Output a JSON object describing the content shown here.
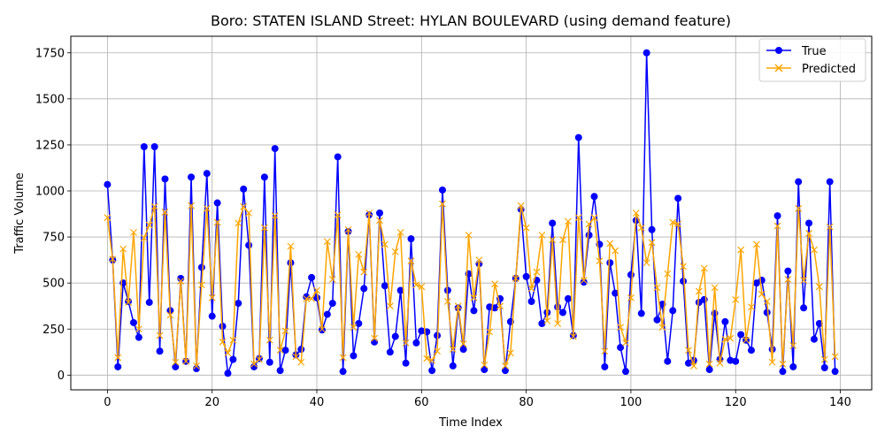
{
  "chart_data": {
    "type": "line",
    "title": "Boro: STATEN ISLAND Street: HYLAN BOULEVARD (using demand feature)",
    "xlabel": "Time Index",
    "ylabel": "Traffic Volume",
    "xlim": [
      -7,
      146
    ],
    "ylim": [
      -80,
      1840
    ],
    "xticks": [
      0,
      20,
      40,
      60,
      80,
      100,
      120,
      140
    ],
    "yticks": [
      0,
      250,
      500,
      750,
      1000,
      1250,
      1500,
      1750
    ],
    "grid": true,
    "legend_position": "top-right",
    "colors": {
      "true": "#0000ff",
      "predicted": "#ffa500",
      "grid": "#b0b0b0"
    },
    "series": [
      {
        "name": "True",
        "marker": "circle",
        "values": [
          1035,
          625,
          45,
          500,
          400,
          285,
          205,
          1240,
          395,
          1240,
          130,
          1065,
          350,
          45,
          525,
          75,
          1075,
          35,
          585,
          1095,
          320,
          935,
          265,
          10,
          85,
          390,
          1010,
          705,
          45,
          90,
          1075,
          70,
          1230,
          25,
          135,
          610,
          110,
          140,
          425,
          530,
          420,
          245,
          330,
          390,
          1185,
          20,
          780,
          105,
          280,
          470,
          870,
          180,
          880,
          485,
          125,
          210,
          460,
          65,
          740,
          175,
          240,
          235,
          25,
          215,
          1005,
          460,
          50,
          365,
          140,
          550,
          350,
          605,
          30,
          370,
          365,
          415,
          25,
          290,
          525,
          900,
          535,
          400,
          515,
          280,
          340,
          825,
          370,
          340,
          415,
          215,
          1290,
          505,
          760,
          970,
          710,
          45,
          610,
          445,
          150,
          20,
          545,
          840,
          335,
          1750,
          790,
          300,
          385,
          75,
          350,
          960,
          510,
          65,
          80,
          395,
          410,
          30,
          335,
          85,
          290,
          80,
          75,
          220,
          190,
          135,
          500,
          515,
          340,
          140,
          865,
          20,
          565,
          45,
          1050,
          365,
          825,
          195,
          280,
          40,
          1050,
          20
        ]
      },
      {
        "name": "Predicted",
        "marker": "x",
        "values": [
          855,
          630,
          95,
          685,
          395,
          775,
          250,
          745,
          815,
          915,
          215,
          885,
          325,
          70,
          510,
          75,
          920,
          50,
          490,
          905,
          420,
          830,
          180,
          120,
          190,
          825,
          915,
          880,
          60,
          85,
          800,
          190,
          865,
          135,
          240,
          700,
          100,
          70,
          415,
          415,
          460,
          250,
          725,
          520,
          870,
          95,
          790,
          260,
          655,
          560,
          880,
          200,
          840,
          710,
          375,
          670,
          775,
          175,
          620,
          490,
          480,
          90,
          80,
          130,
          930,
          400,
          140,
          375,
          170,
          760,
          420,
          625,
          55,
          235,
          495,
          375,
          50,
          120,
          525,
          920,
          800,
          470,
          560,
          760,
          295,
          735,
          280,
          735,
          835,
          210,
          855,
          515,
          820,
          855,
          620,
          130,
          715,
          675,
          260,
          175,
          420,
          880,
          800,
          610,
          720,
          475,
          260,
          550,
          830,
          820,
          590,
          135,
          50,
          455,
          580,
          60,
          475,
          65,
          195,
          200,
          410,
          680,
          190,
          370,
          710,
          440,
          400,
          70,
          810,
          60,
          520,
          160,
          905,
          515,
          770,
          680,
          480,
          85,
          805,
          100
        ]
      }
    ]
  }
}
